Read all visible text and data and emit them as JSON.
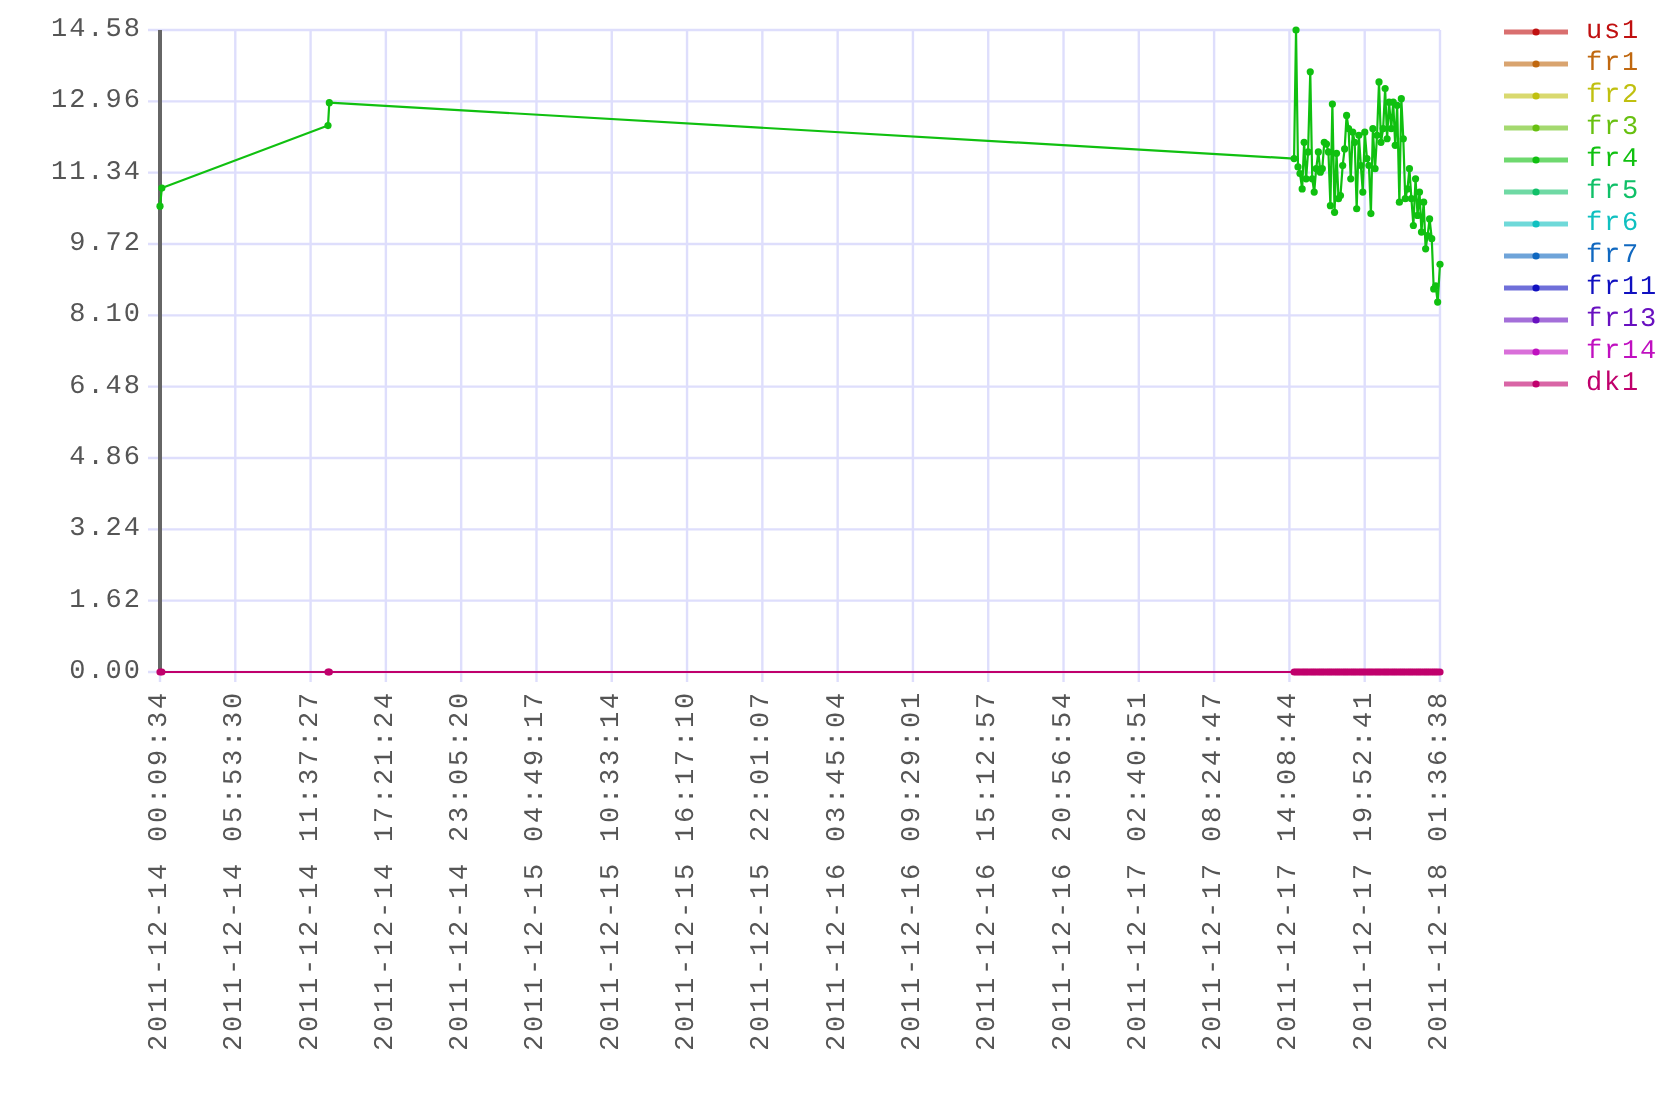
{
  "chart_data": {
    "type": "line",
    "x": [
      "2011-12-14T00:09:34",
      "2011-12-14T00:18",
      "2011-12-14T12:57",
      "2011-12-14T13:03",
      "2011-12-17T14:30",
      "2011-12-17T14:39",
      "2011-12-17T14:48",
      "2011-12-17T14:57",
      "2011-12-17T15:07",
      "2011-12-17T15:16",
      "2011-12-17T15:25",
      "2011-12-17T15:34",
      "2011-12-17T15:44",
      "2011-12-17T15:53",
      "2011-12-17T16:02",
      "2011-12-17T16:11",
      "2011-12-17T16:21",
      "2011-12-17T16:30",
      "2011-12-17T16:39",
      "2011-12-17T16:48",
      "2011-12-17T16:58",
      "2011-12-17T17:07",
      "2011-12-17T17:16",
      "2011-12-17T17:25",
      "2011-12-17T17:35",
      "2011-12-17T17:44",
      "2011-12-17T17:53",
      "2011-12-17T18:02",
      "2011-12-17T18:12",
      "2011-12-17T18:21",
      "2011-12-17T18:30",
      "2011-12-17T18:39",
      "2011-12-17T18:49",
      "2011-12-17T18:58",
      "2011-12-17T19:07",
      "2011-12-17T19:16",
      "2011-12-17T19:26",
      "2011-12-17T19:35",
      "2011-12-17T19:44",
      "2011-12-17T19:53",
      "2011-12-17T20:03",
      "2011-12-17T20:12",
      "2011-12-17T20:21",
      "2011-12-17T20:30",
      "2011-12-17T20:40",
      "2011-12-17T20:49",
      "2011-12-17T20:58",
      "2011-12-17T21:07",
      "2011-12-17T21:17",
      "2011-12-17T21:26",
      "2011-12-17T21:35",
      "2011-12-17T21:44",
      "2011-12-17T21:54",
      "2011-12-17T22:03",
      "2011-12-17T22:12",
      "2011-12-17T22:21",
      "2011-12-17T22:31",
      "2011-12-17T22:40",
      "2011-12-17T22:49",
      "2011-12-17T22:58",
      "2011-12-17T23:08",
      "2011-12-17T23:17",
      "2011-12-17T23:26",
      "2011-12-17T23:35",
      "2011-12-17T23:45",
      "2011-12-17T23:54",
      "2011-12-18T00:03",
      "2011-12-18T00:12",
      "2011-12-18T00:22",
      "2011-12-18T00:31",
      "2011-12-18T00:40",
      "2011-12-18T00:49",
      "2011-12-18T00:59",
      "2011-12-18T01:08",
      "2011-12-18T01:17",
      "2011-12-18T01:26",
      "2011-12-18T01:36:38"
    ],
    "series": [
      {
        "name": "us1",
        "color": "#c01010",
        "values": [
          null,
          null,
          null,
          null,
          null,
          null,
          null,
          null,
          null,
          null,
          null,
          null,
          null,
          null,
          null,
          null,
          null,
          null,
          null,
          null,
          null,
          null,
          null,
          null,
          null,
          null,
          null,
          null,
          null,
          null,
          null,
          null,
          null,
          null,
          null,
          null,
          null,
          null,
          null,
          null,
          null,
          null,
          null,
          null,
          null,
          null,
          null,
          null,
          null,
          null,
          null,
          null,
          null,
          null,
          null,
          null,
          null,
          null,
          null,
          null,
          null,
          null,
          null,
          null,
          null,
          null,
          null,
          null,
          null,
          null,
          null,
          null,
          null,
          null,
          null,
          null,
          null
        ]
      },
      {
        "name": "fr1",
        "color": "#c06810",
        "values": [
          null,
          null,
          null,
          null,
          null,
          null,
          null,
          null,
          null,
          null,
          null,
          null,
          null,
          null,
          null,
          null,
          null,
          null,
          null,
          null,
          null,
          null,
          null,
          null,
          null,
          null,
          null,
          null,
          null,
          null,
          null,
          null,
          null,
          null,
          null,
          null,
          null,
          null,
          null,
          null,
          null,
          null,
          null,
          null,
          null,
          null,
          null,
          null,
          null,
          null,
          null,
          null,
          null,
          null,
          null,
          null,
          null,
          null,
          null,
          null,
          null,
          null,
          null,
          null,
          null,
          null,
          null,
          null,
          null,
          null,
          null,
          null,
          null,
          null,
          null,
          null,
          null
        ]
      },
      {
        "name": "fr2",
        "color": "#c0c010",
        "values": [
          null,
          null,
          null,
          null,
          null,
          null,
          null,
          null,
          null,
          null,
          null,
          null,
          null,
          null,
          null,
          null,
          null,
          null,
          null,
          null,
          null,
          null,
          null,
          null,
          null,
          null,
          null,
          null,
          null,
          null,
          null,
          null,
          null,
          null,
          null,
          null,
          null,
          null,
          null,
          null,
          null,
          null,
          null,
          null,
          null,
          null,
          null,
          null,
          null,
          null,
          null,
          null,
          null,
          null,
          null,
          null,
          null,
          null,
          null,
          null,
          null,
          null,
          null,
          null,
          null,
          null,
          null,
          null,
          null,
          null,
          null,
          null,
          null,
          null,
          null,
          null,
          null
        ]
      },
      {
        "name": "fr3",
        "color": "#68c010",
        "values": [
          null,
          null,
          null,
          null,
          null,
          null,
          null,
          null,
          null,
          null,
          null,
          null,
          null,
          null,
          null,
          null,
          null,
          null,
          null,
          null,
          null,
          null,
          null,
          null,
          null,
          null,
          null,
          null,
          null,
          null,
          null,
          null,
          null,
          null,
          null,
          null,
          null,
          null,
          null,
          null,
          null,
          null,
          null,
          null,
          null,
          null,
          null,
          null,
          null,
          null,
          null,
          null,
          null,
          null,
          null,
          null,
          null,
          null,
          null,
          null,
          null,
          null,
          null,
          null,
          null,
          null,
          null,
          null,
          null,
          null,
          null,
          null,
          null,
          null,
          null,
          null,
          null
        ]
      },
      {
        "name": "fr4",
        "color": "#10c010",
        "values": [
          10.58,
          10.99,
          12.41,
          12.93,
          11.66,
          14.58,
          11.47,
          11.32,
          10.97,
          12.03,
          11.2,
          11.81,
          13.63,
          11.2,
          10.9,
          11.43,
          11.81,
          11.35,
          11.43,
          12.03,
          11.99,
          11.81,
          10.59,
          12.9,
          10.44,
          11.78,
          10.75,
          10.82,
          11.5,
          11.88,
          12.64,
          12.34,
          11.2,
          12.26,
          12.03,
          10.52,
          12.19,
          11.5,
          10.9,
          12.26,
          11.66,
          11.5,
          10.41,
          12.34,
          11.43,
          12.19,
          13.4,
          12.03,
          12.34,
          13.25,
          12.11,
          12.94,
          12.34,
          12.94,
          11.96,
          12.87,
          10.67,
          13.02,
          12.11,
          10.75,
          10.97,
          11.43,
          10.75,
          10.14,
          11.2,
          10.37,
          10.9,
          9.99,
          10.67,
          9.61,
          9.91,
          10.29,
          9.84,
          8.7,
          8.77,
          8.4,
          9.26
        ]
      },
      {
        "name": "fr5",
        "color": "#10c068",
        "values": [
          null,
          null,
          null,
          null,
          null,
          null,
          null,
          null,
          null,
          null,
          null,
          null,
          null,
          null,
          null,
          null,
          null,
          null,
          null,
          null,
          null,
          null,
          null,
          null,
          null,
          null,
          null,
          null,
          null,
          null,
          null,
          null,
          null,
          null,
          null,
          null,
          null,
          null,
          null,
          null,
          null,
          null,
          null,
          null,
          null,
          null,
          null,
          null,
          null,
          null,
          null,
          null,
          null,
          null,
          null,
          null,
          null,
          null,
          null,
          null,
          null,
          null,
          null,
          null,
          null,
          null,
          null,
          null,
          null,
          null,
          null,
          null,
          null,
          null,
          null,
          null,
          null
        ]
      },
      {
        "name": "fr6",
        "color": "#10c0c0",
        "values": [
          null,
          null,
          null,
          null,
          null,
          null,
          null,
          null,
          null,
          null,
          null,
          null,
          null,
          null,
          null,
          null,
          null,
          null,
          null,
          null,
          null,
          null,
          null,
          null,
          null,
          null,
          null,
          null,
          null,
          null,
          null,
          null,
          null,
          null,
          null,
          null,
          null,
          null,
          null,
          null,
          null,
          null,
          null,
          null,
          null,
          null,
          null,
          null,
          null,
          null,
          null,
          null,
          null,
          null,
          null,
          null,
          null,
          null,
          null,
          null,
          null,
          null,
          null,
          null,
          null,
          null,
          null,
          null,
          null,
          null,
          null,
          null,
          null,
          null,
          null,
          null,
          null
        ]
      },
      {
        "name": "fr7",
        "color": "#1068c0",
        "values": [
          null,
          null,
          null,
          null,
          null,
          null,
          null,
          null,
          null,
          null,
          null,
          null,
          null,
          null,
          null,
          null,
          null,
          null,
          null,
          null,
          null,
          null,
          null,
          null,
          null,
          null,
          null,
          null,
          null,
          null,
          null,
          null,
          null,
          null,
          null,
          null,
          null,
          null,
          null,
          null,
          null,
          null,
          null,
          null,
          null,
          null,
          null,
          null,
          null,
          null,
          null,
          null,
          null,
          null,
          null,
          null,
          null,
          null,
          null,
          null,
          null,
          null,
          null,
          null,
          null,
          null,
          null,
          null,
          null,
          null,
          null,
          null,
          null,
          null,
          null,
          null,
          null
        ]
      },
      {
        "name": "fr11",
        "color": "#1010c0",
        "values": [
          null,
          null,
          null,
          null,
          null,
          null,
          null,
          null,
          null,
          null,
          null,
          null,
          null,
          null,
          null,
          null,
          null,
          null,
          null,
          null,
          null,
          null,
          null,
          null,
          null,
          null,
          null,
          null,
          null,
          null,
          null,
          null,
          null,
          null,
          null,
          null,
          null,
          null,
          null,
          null,
          null,
          null,
          null,
          null,
          null,
          null,
          null,
          null,
          null,
          null,
          null,
          null,
          null,
          null,
          null,
          null,
          null,
          null,
          null,
          null,
          null,
          null,
          null,
          null,
          null,
          null,
          null,
          null,
          null,
          null,
          null,
          null,
          null,
          null,
          null,
          null,
          null
        ]
      },
      {
        "name": "fr13",
        "color": "#6810c0",
        "values": [
          null,
          null,
          null,
          null,
          null,
          null,
          null,
          null,
          null,
          null,
          null,
          null,
          null,
          null,
          null,
          null,
          null,
          null,
          null,
          null,
          null,
          null,
          null,
          null,
          null,
          null,
          null,
          null,
          null,
          null,
          null,
          null,
          null,
          null,
          null,
          null,
          null,
          null,
          null,
          null,
          null,
          null,
          null,
          null,
          null,
          null,
          null,
          null,
          null,
          null,
          null,
          null,
          null,
          null,
          null,
          null,
          null,
          null,
          null,
          null,
          null,
          null,
          null,
          null,
          null,
          null,
          null,
          null,
          null,
          null,
          null,
          null,
          null,
          null,
          null,
          null,
          null
        ]
      },
      {
        "name": "fr14",
        "color": "#c010c0",
        "values": [
          null,
          null,
          null,
          null,
          null,
          null,
          null,
          null,
          null,
          null,
          null,
          null,
          null,
          null,
          null,
          null,
          null,
          null,
          null,
          null,
          null,
          null,
          null,
          null,
          null,
          null,
          null,
          null,
          null,
          null,
          null,
          null,
          null,
          null,
          null,
          null,
          null,
          null,
          null,
          null,
          null,
          null,
          null,
          null,
          null,
          null,
          null,
          null,
          null,
          null,
          null,
          null,
          null,
          null,
          null,
          null,
          null,
          null,
          null,
          null,
          null,
          null,
          null,
          null,
          null,
          null,
          null,
          null,
          null,
          null,
          null,
          null,
          null,
          null,
          null,
          null,
          null
        ]
      },
      {
        "name": "dk1",
        "color": "#c0006c",
        "values": [
          0,
          0,
          0,
          0,
          0,
          0,
          0,
          0,
          0,
          0,
          0,
          0,
          0,
          0,
          0,
          0,
          0,
          0,
          0,
          0,
          0,
          0,
          0,
          0,
          0,
          0,
          0,
          0,
          0,
          0,
          0,
          0,
          0,
          0,
          0,
          0,
          0,
          0,
          0,
          0,
          0,
          0,
          0,
          0,
          0,
          0,
          0,
          0,
          0,
          0,
          0,
          0,
          0,
          0,
          0,
          0,
          0,
          0,
          0,
          0,
          0,
          0,
          0,
          0,
          0,
          0,
          0,
          0,
          0,
          0,
          0,
          0,
          0,
          0,
          0,
          0,
          0
        ]
      }
    ],
    "xlim": [
      "2011-12-14T00:09:34",
      "2011-12-18T01:36:38"
    ],
    "xticks": [
      {
        "value": "2011-12-14T00:09:34",
        "label": "2011-12-14 00:09:34"
      },
      {
        "value": "2011-12-14T05:53:30",
        "label": "2011-12-14 05:53:30"
      },
      {
        "value": "2011-12-14T11:37:27",
        "label": "2011-12-14 11:37:27"
      },
      {
        "value": "2011-12-14T17:21:24",
        "label": "2011-12-14 17:21:24"
      },
      {
        "value": "2011-12-14T23:05:20",
        "label": "2011-12-14 23:05:20"
      },
      {
        "value": "2011-12-15T04:49:17",
        "label": "2011-12-15 04:49:17"
      },
      {
        "value": "2011-12-15T10:33:14",
        "label": "2011-12-15 10:33:14"
      },
      {
        "value": "2011-12-15T16:17:10",
        "label": "2011-12-15 16:17:10"
      },
      {
        "value": "2011-12-15T22:01:07",
        "label": "2011-12-15 22:01:07"
      },
      {
        "value": "2011-12-16T03:45:04",
        "label": "2011-12-16 03:45:04"
      },
      {
        "value": "2011-12-16T09:29:01",
        "label": "2011-12-16 09:29:01"
      },
      {
        "value": "2011-12-16T15:12:57",
        "label": "2011-12-16 15:12:57"
      },
      {
        "value": "2011-12-16T20:56:54",
        "label": "2011-12-16 20:56:54"
      },
      {
        "value": "2011-12-17T02:40:51",
        "label": "2011-12-17 02:40:51"
      },
      {
        "value": "2011-12-17T08:24:47",
        "label": "2011-12-17 08:24:47"
      },
      {
        "value": "2011-12-17T14:08:44",
        "label": "2011-12-17 14:08:44"
      },
      {
        "value": "2011-12-17T19:52:41",
        "label": "2011-12-17 19:52:41"
      },
      {
        "value": "2011-12-18T01:36:38",
        "label": "2011-12-18 01:36:38"
      }
    ],
    "ylim": [
      0,
      14.58
    ],
    "yticks": [
      {
        "value": 0,
        "label": "0.00"
      },
      1.62,
      3.24,
      4.86,
      6.48,
      {
        "value": 8.1,
        "label": "8.10"
      },
      9.72,
      11.34,
      12.96,
      14.58
    ],
    "grid": true,
    "legend": "top right",
    "marker": "circle",
    "line_style": "solid"
  }
}
